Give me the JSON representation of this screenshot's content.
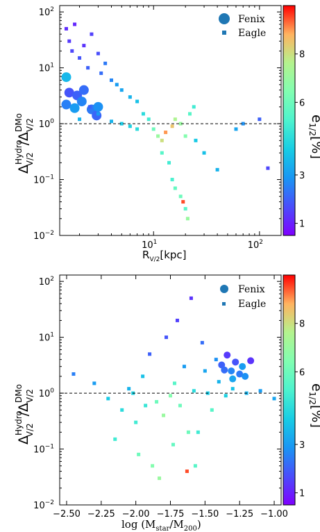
{
  "chart_data": [
    {
      "type": "scatter",
      "xscale": "log",
      "yscale": "log",
      "xlim": [
        1.3,
        160
      ],
      "ylim": [
        0.01,
        130
      ],
      "xlabel_main": "R",
      "xlabel_sub": "V/2",
      "xlabel_unit": "[kpc]",
      "x_ticks": [
        {
          "base": "10",
          "exp": "1",
          "value": 10
        },
        {
          "base": "10",
          "exp": "2",
          "value": 100
        }
      ],
      "y_ticks": [
        {
          "base": "10",
          "exp": "−2",
          "value": 0.01
        },
        {
          "base": "10",
          "exp": "−1",
          "value": 0.1
        },
        {
          "base": "10",
          "exp": "0",
          "value": 1
        },
        {
          "base": "10",
          "exp": "1",
          "value": 10
        },
        {
          "base": "10",
          "exp": "2",
          "value": 100
        }
      ],
      "reference_line": {
        "y": 1.0,
        "style": "dashed"
      },
      "legend": {
        "position": "top-right",
        "entries": [
          {
            "label": "Fenix",
            "marker": "circle"
          },
          {
            "label": "Eagle",
            "marker": "square"
          }
        ]
      },
      "series": [
        {
          "name": "Fenix",
          "marker": "circle",
          "points": [
            [
              1.5,
              6.8,
              3.6
            ],
            [
              1.6,
              3.6,
              1.8
            ],
            [
              1.9,
              3.2,
              2.0
            ],
            [
              2.1,
              2.5,
              2.6
            ],
            [
              2.2,
              4.0,
              2.2
            ],
            [
              2.6,
              1.8,
              2.4
            ],
            [
              2.9,
              1.4,
              2.1
            ],
            [
              3.0,
              2.0,
              2.8
            ],
            [
              1.5,
              2.2,
              2.5
            ],
            [
              1.8,
              1.9,
              3.0
            ]
          ]
        },
        {
          "name": "Eagle",
          "marker": "square",
          "points": [
            [
              1.5,
              50,
              1.2
            ],
            [
              1.6,
              30,
              1.4
            ],
            [
              1.7,
              20,
              1.6
            ],
            [
              1.8,
              60,
              1.1
            ],
            [
              2.0,
              15,
              1.8
            ],
            [
              2.2,
              25,
              1.3
            ],
            [
              2.4,
              10,
              2.0
            ],
            [
              2.6,
              40,
              1.5
            ],
            [
              3.0,
              18,
              1.7
            ],
            [
              3.2,
              8,
              2.2
            ],
            [
              3.5,
              12,
              2.4
            ],
            [
              4.0,
              6,
              2.6
            ],
            [
              4.5,
              5,
              3.0
            ],
            [
              5.0,
              4,
              3.2
            ],
            [
              6.0,
              3,
              3.5
            ],
            [
              7.0,
              2.5,
              3.8
            ],
            [
              8.0,
              1.5,
              4.5
            ],
            [
              9.0,
              1.2,
              5.0
            ],
            [
              10,
              0.8,
              6.0
            ],
            [
              11,
              0.6,
              7.0
            ],
            [
              12,
              0.5,
              8.0
            ],
            [
              13,
              0.7,
              9.0
            ],
            [
              15,
              0.9,
              8.5
            ],
            [
              16,
              1.2,
              7.5
            ],
            [
              18,
              1.0,
              7.0
            ],
            [
              20,
              0.6,
              6.5
            ],
            [
              22,
              1.5,
              5.5
            ],
            [
              24,
              2.0,
              5.0
            ],
            [
              12,
              0.3,
              5.5
            ],
            [
              14,
              0.2,
              5.0
            ],
            [
              15,
              0.1,
              5.2
            ],
            [
              16,
              0.07,
              5.8
            ],
            [
              18,
              0.05,
              6.0
            ],
            [
              19,
              0.04,
              9.5
            ],
            [
              20,
              0.03,
              5.5
            ],
            [
              21,
              0.02,
              7.0
            ],
            [
              25,
              0.5,
              4.0
            ],
            [
              30,
              0.3,
              3.8
            ],
            [
              40,
              0.15,
              3.5
            ],
            [
              60,
              0.8,
              3.2
            ],
            [
              70,
              1.0,
              2.8
            ],
            [
              100,
              1.2,
              2.0
            ],
            [
              120,
              0.16,
              1.6
            ],
            [
              2.0,
              1.2,
              3.5
            ],
            [
              2.5,
              2.0,
              2.0
            ],
            [
              3.0,
              1.5,
              3.0
            ],
            [
              4.0,
              1.1,
              3.5
            ],
            [
              5.0,
              1.0,
              4.0
            ],
            [
              6.0,
              0.9,
              4.2
            ],
            [
              7.0,
              0.8,
              4.5
            ]
          ]
        }
      ],
      "colorbar": {
        "label_main": "e",
        "label_sub": "1/2",
        "label_unit": "[%]",
        "range": [
          0.5,
          10
        ],
        "ticks": [
          "1",
          "3",
          "6",
          "8"
        ]
      }
    },
    {
      "type": "scatter",
      "xscale": "linear",
      "yscale": "log",
      "xlim": [
        -2.55,
        -0.95
      ],
      "ylim": [
        0.01,
        130
      ],
      "xlabel_main": "log (M",
      "xlabel_sub1": "star",
      "xlabel_mid": "/M",
      "xlabel_sub2": "200",
      "xlabel_end": ")",
      "x_ticks": [
        "−2.50",
        "−2.25",
        "−2.00",
        "−1.75",
        "−1.50",
        "−1.25",
        "−1.00"
      ],
      "x_tick_values": [
        -2.5,
        -2.25,
        -2.0,
        -1.75,
        -1.5,
        -1.25,
        -1.0
      ],
      "y_ticks": [
        {
          "base": "10",
          "exp": "−2",
          "value": 0.01
        },
        {
          "base": "10",
          "exp": "−1",
          "value": 0.1
        },
        {
          "base": "10",
          "exp": "0",
          "value": 1
        },
        {
          "base": "10",
          "exp": "1",
          "value": 10
        },
        {
          "base": "10",
          "exp": "2",
          "value": 100
        }
      ],
      "reference_line": {
        "y": 1.0,
        "style": "dashed"
      },
      "legend": {
        "position": "top-right",
        "entries": [
          {
            "label": "Fenix",
            "marker": "circle"
          },
          {
            "label": "Eagle",
            "marker": "square"
          }
        ]
      },
      "series": [
        {
          "name": "Fenix",
          "marker": "circle",
          "points": [
            [
              -1.38,
              3.2,
              2.0
            ],
            [
              -1.34,
              4.8,
              1.4
            ],
            [
              -1.31,
              2.5,
              2.6
            ],
            [
              -1.28,
              3.6,
              1.8
            ],
            [
              -1.25,
              2.2,
              2.4
            ],
            [
              -1.23,
              3.0,
              3.0
            ],
            [
              -1.21,
              2.0,
              2.8
            ],
            [
              -1.17,
              3.8,
              1.3
            ],
            [
              -1.3,
              1.8,
              3.2
            ],
            [
              -1.36,
              2.6,
              2.2
            ]
          ]
        },
        {
          "name": "Eagle",
          "marker": "square",
          "points": [
            [
              -2.45,
              2.2,
              2.5
            ],
            [
              -2.3,
              1.5,
              3.0
            ],
            [
              -2.2,
              0.8,
              4.0
            ],
            [
              -2.1,
              0.5,
              4.5
            ],
            [
              -2.05,
              1.2,
              3.5
            ],
            [
              -2.0,
              0.3,
              5.0
            ],
            [
              -1.95,
              2.0,
              3.8
            ],
            [
              -1.9,
              5.0,
              2.0
            ],
            [
              -1.85,
              0.7,
              6.0
            ],
            [
              -1.8,
              0.4,
              7.0
            ],
            [
              -1.78,
              10,
              1.8
            ],
            [
              -1.75,
              0.9,
              6.5
            ],
            [
              -1.72,
              1.5,
              5.5
            ],
            [
              -1.7,
              20,
              1.5
            ],
            [
              -1.68,
              0.6,
              6.0
            ],
            [
              -1.65,
              3.0,
              3.0
            ],
            [
              -1.63,
              0.04,
              9.5
            ],
            [
              -1.6,
              50,
              1.3
            ],
            [
              -1.58,
              1.1,
              4.5
            ],
            [
              -1.55,
              0.2,
              5.0
            ],
            [
              -1.52,
              8,
              2.2
            ],
            [
              -1.5,
              2.5,
              3.2
            ],
            [
              -1.48,
              1.0,
              4.0
            ],
            [
              -1.45,
              0.5,
              5.5
            ],
            [
              -1.42,
              4,
              2.8
            ],
            [
              -1.4,
              1.6,
              3.5
            ],
            [
              -1.35,
              0.9,
              4.2
            ],
            [
              -1.3,
              1.2,
              3.8
            ],
            [
              -1.2,
              1.0,
              3.5
            ],
            [
              -1.1,
              1.1,
              3.0
            ],
            [
              -1.0,
              0.8,
              3.2
            ],
            [
              -2.15,
              0.15,
              5.0
            ],
            [
              -1.98,
              0.08,
              6.0
            ],
            [
              -1.88,
              0.05,
              6.5
            ],
            [
              -1.83,
              0.03,
              7.0
            ],
            [
              -1.62,
              0.2,
              6.0
            ],
            [
              -1.57,
              0.05,
              5.5
            ],
            [
              -1.73,
              0.12,
              5.8
            ],
            [
              -1.93,
              0.6,
              4.8
            ],
            [
              -2.02,
              1.0,
              4.2
            ]
          ]
        }
      ],
      "colorbar": {
        "label_main": "e",
        "label_sub": "1/2",
        "label_unit": "[%]",
        "range": [
          0.5,
          10
        ],
        "ticks": [
          "1",
          "3",
          "6",
          "8"
        ]
      }
    }
  ],
  "ylabel": {
    "main": "Δ",
    "sub": "V/2",
    "sup1": "Hydro",
    "sep": "/Δ",
    "sup2": "DMo"
  }
}
